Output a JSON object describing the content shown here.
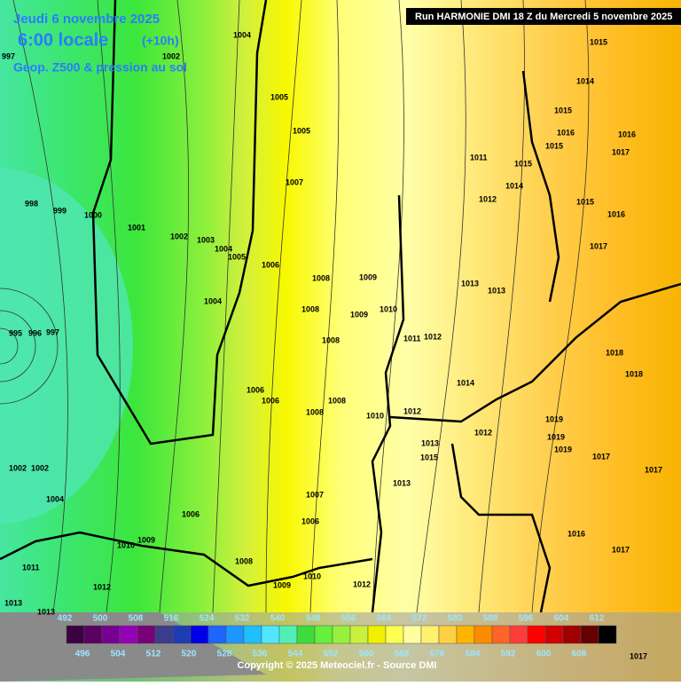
{
  "header": {
    "date": "Jeudi 6 novembre 2025",
    "time": "6:00 locale",
    "offset": "(+10h)",
    "product": "Geop. Z500 & pression au sol",
    "run": "Run HARMONIE DMI 18 Z du Mercredi 5 novembre 2025"
  },
  "isobar_labels": [
    997,
    998,
    999,
    1000,
    1001,
    1002,
    1003,
    1004,
    1005,
    1004,
    995,
    996,
    997,
    1002,
    1002,
    1004,
    1006,
    1009,
    1010,
    1011,
    1012,
    1013,
    1013,
    1002,
    1004,
    1005,
    1005,
    1007,
    1006,
    1008,
    1009,
    1008,
    1009,
    1010,
    1011,
    1012,
    1008,
    1006,
    1006,
    1008,
    1008,
    1010,
    1012,
    1013,
    1015,
    1013,
    1007,
    1006,
    1008,
    1009,
    1010,
    1012,
    1013,
    1014,
    1012,
    1011,
    1012,
    1013,
    1014,
    1015,
    1015,
    1014,
    1015,
    1015,
    1016,
    1017,
    1015,
    1016,
    1017,
    1019,
    1019,
    1019,
    1017,
    1017,
    1018,
    1018,
    1016,
    1017,
    1017,
    1016
  ],
  "colorbar": {
    "top_labels": [
      492,
      500,
      508,
      516,
      524,
      532,
      540,
      548,
      556,
      564,
      572,
      580,
      588,
      596,
      604,
      612
    ],
    "bottom_labels": [
      496,
      504,
      512,
      520,
      528,
      536,
      544,
      552,
      560,
      568,
      576,
      584,
      592,
      600,
      608
    ],
    "colors": [
      "#3c0040",
      "#5a0060",
      "#780090",
      "#9600b4",
      "#780078",
      "#3c3c8c",
      "#1e3cb4",
      "#0000e6",
      "#1e64ff",
      "#1e96ff",
      "#1ebeff",
      "#50e6ff",
      "#50f0b4",
      "#3cdc3c",
      "#64f03c",
      "#96f03c",
      "#c8f03c",
      "#f0f000",
      "#ffff50",
      "#ffffa0",
      "#fff070",
      "#ffd040",
      "#ffb400",
      "#ff8c00",
      "#ff6428",
      "#ff3c3c",
      "#ff0000",
      "#d20000",
      "#a00000",
      "#640000",
      "#000000"
    ]
  },
  "footer": "Copyright © 2025 Meteociel.fr - Source DMI"
}
